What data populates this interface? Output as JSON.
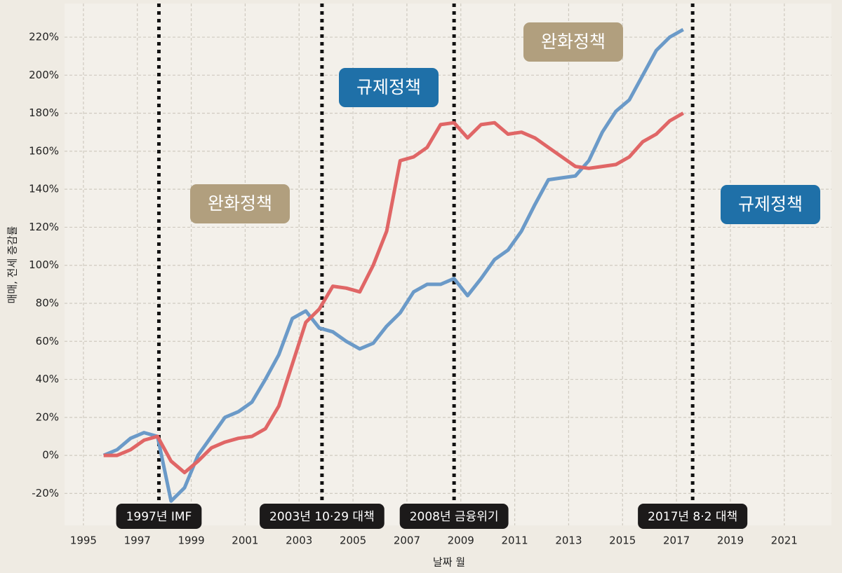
{
  "chart_data": {
    "type": "line",
    "x_label": "날짜 월",
    "y_label": "매매, 전세 증감률",
    "x": [
      1995.75,
      1996.25,
      1996.75,
      1997.25,
      1997.75,
      1998.25,
      1998.75,
      1999.25,
      1999.75,
      2000.25,
      2000.75,
      2001.25,
      2001.75,
      2002.25,
      2002.75,
      2003.25,
      2003.75,
      2004.25,
      2004.75,
      2005.25,
      2005.75,
      2006.25,
      2006.75,
      2007.25,
      2007.75,
      2008.25,
      2008.75,
      2009.25,
      2009.75,
      2010.25,
      2010.75,
      2011.25,
      2011.75,
      2012.25,
      2012.75,
      2013.25,
      2013.75,
      2014.25,
      2014.75,
      2015.25,
      2015.75,
      2016.25,
      2016.75,
      2017.25
    ],
    "series": [
      {
        "color": "#6b9ac8",
        "values": [
          0,
          3,
          9,
          12,
          10,
          -24,
          -17,
          0,
          10,
          20,
          23,
          28,
          40,
          53,
          72,
          76,
          67,
          65,
          60,
          56,
          59,
          68,
          75,
          86,
          90,
          90,
          93,
          84,
          93,
          103,
          108,
          118,
          132,
          145,
          146,
          147,
          155,
          170,
          181,
          187,
          200,
          213,
          220,
          224
        ]
      },
      {
        "color": "#e06666",
        "values": [
          0,
          0,
          3,
          8,
          10,
          -3,
          -9,
          -3,
          4,
          7,
          9,
          10,
          14,
          26,
          48,
          70,
          77,
          89,
          88,
          86,
          100,
          118,
          155,
          157,
          162,
          174,
          175,
          167,
          174,
          175,
          169,
          170,
          167,
          162,
          157,
          152,
          151,
          152,
          153,
          157,
          165,
          169,
          176,
          180
        ]
      }
    ],
    "xlim": [
      1994.3,
      2022.75
    ],
    "xticks": [
      1995,
      1997,
      1999,
      2001,
      2003,
      2005,
      2007,
      2009,
      2011,
      2013,
      2015,
      2017,
      2019,
      2021
    ],
    "ylim": [
      -36.8,
      237.7
    ],
    "yticks": [
      {
        "value": -20,
        "label": "-20%"
      },
      {
        "value": 0,
        "label": "0%"
      },
      {
        "value": 20,
        "label": "20%"
      },
      {
        "value": 40,
        "label": "40%"
      },
      {
        "value": 60,
        "label": "60%"
      },
      {
        "value": 80,
        "label": "80%"
      },
      {
        "value": 100,
        "label": "100%"
      },
      {
        "value": 120,
        "label": "120%"
      },
      {
        "value": 140,
        "label": "140%"
      },
      {
        "value": 160,
        "label": "160%"
      },
      {
        "value": 180,
        "label": "180%"
      },
      {
        "value": 200,
        "label": "200%"
      },
      {
        "value": 220,
        "label": "220%"
      }
    ],
    "grid": true,
    "events": [
      {
        "x": 1997.8,
        "label": "1997년 IMF"
      },
      {
        "x": 2003.85,
        "label": "2003년 10·29 대책"
      },
      {
        "x": 2008.75,
        "label": "2008년 금융위기"
      },
      {
        "x": 2017.6,
        "label": "2017년 8·2 대책"
      }
    ],
    "periods": [
      {
        "label": "완화정책",
        "color": "#b19f7e"
      },
      {
        "label": "규제정책",
        "color": "#1f70a8"
      },
      {
        "label": "완화정책",
        "color": "#b19f7e"
      },
      {
        "label": "규제정책",
        "color": "#1f70a8"
      }
    ]
  }
}
